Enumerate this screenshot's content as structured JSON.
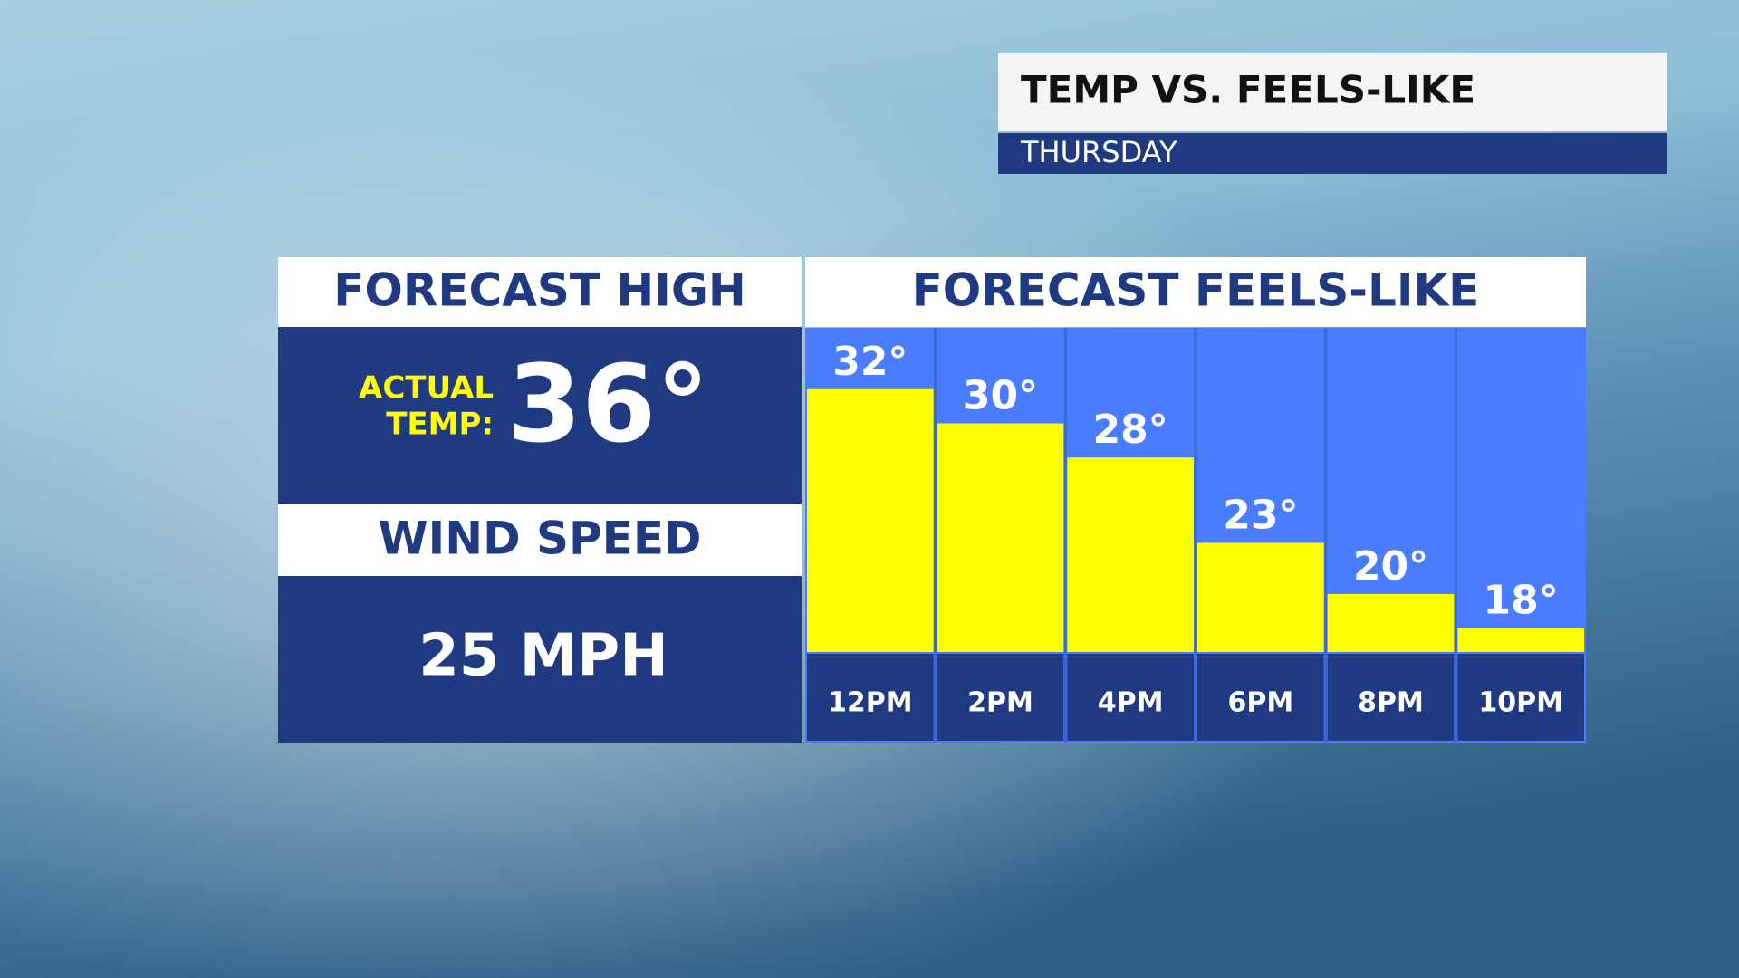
{
  "header": {
    "title": "TEMP VS. FEELS-LIKE",
    "subtitle": "THURSDAY"
  },
  "forecast_high": {
    "title": "FORECAST HIGH",
    "label_lines": [
      "ACTUAL",
      "TEMP:"
    ],
    "value": "36°"
  },
  "wind": {
    "title": "WIND SPEED",
    "value": "25 MPH"
  },
  "chart_data": {
    "type": "bar",
    "title": "FORECAST FEELS-LIKE",
    "categories": [
      "12PM",
      "2PM",
      "4PM",
      "6PM",
      "8PM",
      "10PM"
    ],
    "values": [
      32,
      30,
      28,
      23,
      20,
      18
    ],
    "value_labels": [
      "32°",
      "30°",
      "28°",
      "23°",
      "20°",
      "18°"
    ],
    "color": "#ffff00",
    "ylim": [
      16.6,
      35.6
    ]
  }
}
